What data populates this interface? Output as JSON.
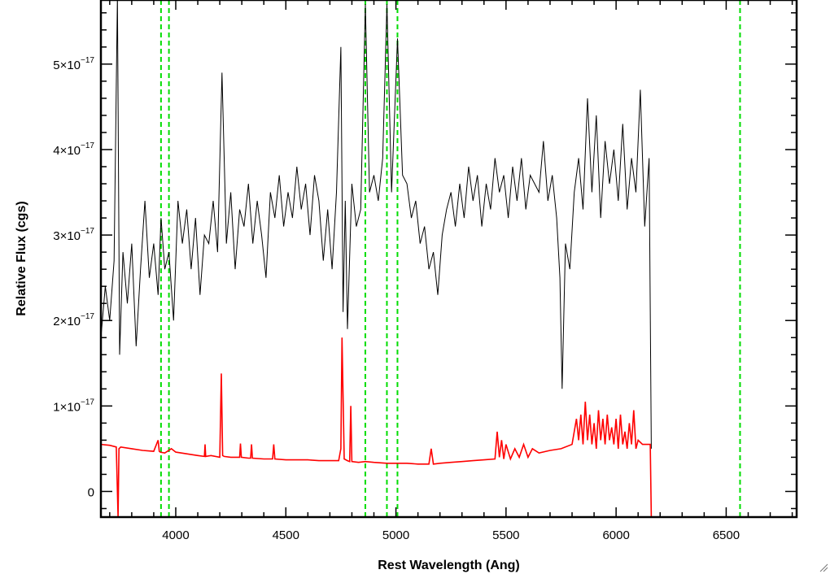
{
  "chart_data": {
    "type": "line",
    "title": "",
    "xlabel": "Rest Wavelength (Ang)",
    "ylabel": "Relative Flux (cgs)",
    "xlim": [
      3660,
      6820
    ],
    "ylim": [
      -3e-18,
      5.75e-17
    ],
    "xticks": [
      {
        "value": 4000,
        "label": "4000"
      },
      {
        "value": 4500,
        "label": "4500"
      },
      {
        "value": 5000,
        "label": "5000"
      },
      {
        "value": 5500,
        "label": "5500"
      },
      {
        "value": 6000,
        "label": "6000"
      },
      {
        "value": 6500,
        "label": "6500"
      }
    ],
    "yticks": [
      {
        "value": 0,
        "mant": "0",
        "exp": ""
      },
      {
        "value": 1e-17,
        "mant": "1×10",
        "exp": "−17"
      },
      {
        "value": 2e-17,
        "mant": "2×10",
        "exp": "−17"
      },
      {
        "value": 3e-17,
        "mant": "3×10",
        "exp": "−17"
      },
      {
        "value": 4e-17,
        "mant": "4×10",
        "exp": "−17"
      },
      {
        "value": 5e-17,
        "mant": "5×10",
        "exp": "−17"
      }
    ],
    "x_minor_step": 100,
    "y_minor_step": 2e-18,
    "grid": false,
    "legend": "none",
    "reference_lines_x": [
      3933,
      3969,
      4861,
      4959,
      5007,
      6563
    ],
    "reference_line_color": "#00dd00",
    "series": [
      {
        "color": "#000000",
        "x": [
          3660,
          3680,
          3700,
          3720,
          3735,
          3745,
          3760,
          3780,
          3800,
          3820,
          3840,
          3860,
          3880,
          3900,
          3920,
          3933,
          3950,
          3969,
          3990,
          4010,
          4030,
          4050,
          4070,
          4090,
          4110,
          4130,
          4150,
          4170,
          4190,
          4210,
          4230,
          4250,
          4270,
          4290,
          4310,
          4330,
          4350,
          4370,
          4390,
          4410,
          4430,
          4450,
          4470,
          4490,
          4510,
          4530,
          4550,
          4570,
          4590,
          4610,
          4630,
          4650,
          4670,
          4690,
          4710,
          4730,
          4750,
          4760,
          4770,
          4780,
          4800,
          4820,
          4840,
          4861,
          4880,
          4900,
          4920,
          4940,
          4959,
          4980,
          5007,
          5030,
          5050,
          5070,
          5090,
          5110,
          5130,
          5150,
          5170,
          5190,
          5210,
          5230,
          5250,
          5270,
          5290,
          5310,
          5330,
          5350,
          5370,
          5390,
          5410,
          5430,
          5450,
          5470,
          5490,
          5510,
          5530,
          5550,
          5570,
          5590,
          5610,
          5630,
          5650,
          5670,
          5690,
          5710,
          5730,
          5745,
          5755,
          5770,
          5790,
          5810,
          5830,
          5850,
          5870,
          5890,
          5910,
          5930,
          5950,
          5970,
          5990,
          6010,
          6030,
          6050,
          6070,
          6090,
          6110,
          6130,
          6150,
          6160
        ],
        "y": [
          1.8e-17,
          2.4e-17,
          2e-17,
          2.7e-17,
          5.8e-17,
          1.6e-17,
          2.8e-17,
          2.2e-17,
          2.9e-17,
          1.7e-17,
          2.6e-17,
          3.4e-17,
          2.5e-17,
          2.9e-17,
          2.3e-17,
          3.2e-17,
          2.6e-17,
          2.8e-17,
          2e-17,
          3.4e-17,
          2.9e-17,
          3.3e-17,
          2.6e-17,
          3.2e-17,
          2.3e-17,
          3e-17,
          2.9e-17,
          3.4e-17,
          2.8e-17,
          4.9e-17,
          2.9e-17,
          3.5e-17,
          2.6e-17,
          3.3e-17,
          3.1e-17,
          3.6e-17,
          2.9e-17,
          3.4e-17,
          3e-17,
          2.5e-17,
          3.5e-17,
          3.2e-17,
          3.7e-17,
          3.1e-17,
          3.5e-17,
          3.2e-17,
          3.8e-17,
          3.3e-17,
          3.6e-17,
          3e-17,
          3.7e-17,
          3.4e-17,
          2.7e-17,
          3.3e-17,
          2.6e-17,
          3.5e-17,
          5.2e-17,
          2.1e-17,
          3.4e-17,
          1.9e-17,
          3.6e-17,
          3.1e-17,
          3.3e-17,
          5.7e-17,
          3.5e-17,
          3.7e-17,
          3.4e-17,
          3.9e-17,
          5.7e-17,
          3.5e-17,
          5.3e-17,
          3.7e-17,
          3.6e-17,
          3.2e-17,
          3.4e-17,
          2.9e-17,
          3.1e-17,
          2.6e-17,
          2.8e-17,
          2.3e-17,
          3e-17,
          3.3e-17,
          3.5e-17,
          3.1e-17,
          3.6e-17,
          3.2e-17,
          3.8e-17,
          3.4e-17,
          3.7e-17,
          3.1e-17,
          3.6e-17,
          3.3e-17,
          3.9e-17,
          3.5e-17,
          3.7e-17,
          3.2e-17,
          3.8e-17,
          3.4e-17,
          3.9e-17,
          3.3e-17,
          3.7e-17,
          3.6e-17,
          3.5e-17,
          4.1e-17,
          3.4e-17,
          3.7e-17,
          3.2e-17,
          2.5e-17,
          1.2e-17,
          2.9e-17,
          2.6e-17,
          3.5e-17,
          3.9e-17,
          3.3e-17,
          4.6e-17,
          3.5e-17,
          4.4e-17,
          3.2e-17,
          4.1e-17,
          3.6e-17,
          4e-17,
          3.4e-17,
          4.3e-17,
          3.3e-17,
          3.9e-17,
          3.5e-17,
          4.7e-17,
          3.1e-17,
          3.9e-17,
          5e-18
        ]
      },
      {
        "color": "#ff0000",
        "x": [
          3660,
          3700,
          3730,
          3738,
          3742,
          3750,
          3800,
          3850,
          3900,
          3920,
          3925,
          3930,
          3950,
          3980,
          4000,
          4050,
          4100,
          4130,
          4133,
          4136,
          4160,
          4200,
          4207,
          4213,
          4220,
          4250,
          4290,
          4294,
          4298,
          4330,
          4340,
          4344,
          4348,
          4400,
          4440,
          4445,
          4450,
          4500,
          4550,
          4600,
          4650,
          4700,
          4740,
          4750,
          4755,
          4765,
          4780,
          4790,
          4795,
          4800,
          4830,
          4861,
          4900,
          4959,
          5007,
          5050,
          5100,
          5150,
          5160,
          5170,
          5200,
          5250,
          5300,
          5350,
          5400,
          5450,
          5460,
          5470,
          5480,
          5490,
          5500,
          5520,
          5540,
          5560,
          5580,
          5600,
          5620,
          5650,
          5700,
          5750,
          5800,
          5820,
          5830,
          5840,
          5850,
          5860,
          5870,
          5880,
          5890,
          5900,
          5910,
          5920,
          5930,
          5940,
          5950,
          5960,
          5970,
          5980,
          5990,
          6000,
          6010,
          6020,
          6030,
          6040,
          6050,
          6060,
          6070,
          6080,
          6090,
          6100,
          6120,
          6140,
          6155,
          6160,
          6200,
          6400,
          6600,
          6820
        ],
        "y": [
          5.5e-18,
          5.4e-18,
          5.2e-18,
          -3e-18,
          5e-18,
          5.2e-18,
          5e-18,
          4.8e-18,
          4.7e-18,
          6e-18,
          4.7e-18,
          4.6e-18,
          4.5e-18,
          5e-18,
          4.6e-18,
          4.4e-18,
          4.2e-18,
          4.1e-18,
          5.5e-18,
          4.1e-18,
          4.2e-18,
          4e-18,
          1.38e-17,
          4.2e-18,
          4.1e-18,
          4e-18,
          4e-18,
          5.6e-18,
          4e-18,
          3.9e-18,
          3.9e-18,
          5.5e-18,
          3.9e-18,
          3.8e-18,
          3.8e-18,
          5.5e-18,
          3.8e-18,
          3.7e-18,
          3.7e-18,
          3.7e-18,
          3.6e-18,
          3.6e-18,
          3.6e-18,
          5e-18,
          1.8e-17,
          3.8e-18,
          3.6e-18,
          3.5e-18,
          1e-17,
          3.5e-18,
          3.4e-18,
          3.5e-18,
          3.4e-18,
          3.3e-18,
          3.3e-18,
          3.3e-18,
          3.2e-18,
          3.2e-18,
          5e-18,
          3.2e-18,
          3.3e-18,
          3.4e-18,
          3.5e-18,
          3.6e-18,
          3.7e-18,
          3.8e-18,
          7e-18,
          4e-18,
          6e-18,
          3.8e-18,
          5.5e-18,
          3.8e-18,
          5e-18,
          4e-18,
          5.5e-18,
          4e-18,
          5e-18,
          4.5e-18,
          4.8e-18,
          5e-18,
          5.5e-18,
          8.5e-18,
          6e-18,
          9e-18,
          5.5e-18,
          1.05e-17,
          6e-18,
          9e-18,
          5.5e-18,
          8e-18,
          5e-18,
          9.5e-18,
          6e-18,
          8.5e-18,
          5.5e-18,
          9e-18,
          6e-18,
          7.5e-18,
          5.5e-18,
          8.5e-18,
          5e-18,
          9e-18,
          5.5e-18,
          7e-18,
          5e-18,
          8e-18,
          5.5e-18,
          9.5e-18,
          5e-18,
          6e-18,
          5.5e-18,
          5.5e-18,
          5.5e-18,
          -3e-18,
          -3e-18,
          -3e-18,
          -3e-18,
          -3e-18
        ]
      }
    ]
  }
}
